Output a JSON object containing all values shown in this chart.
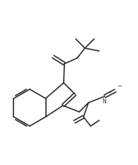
{
  "background_color": "#ffffff",
  "line_color": "#2a2a2a",
  "line_width": 1.2,
  "figsize": [
    1.95,
    2.33
  ],
  "dpi": 100
}
